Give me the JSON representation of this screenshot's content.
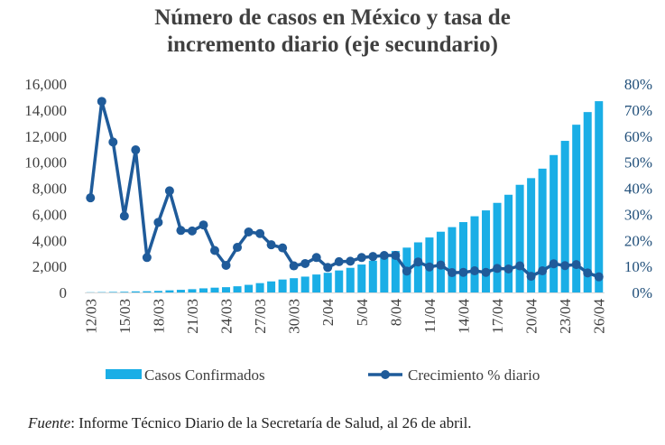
{
  "title_lines": [
    "Número de casos en México y tasa de",
    "incremento diario (eje secundario)"
  ],
  "chart_data": {
    "type": "bar",
    "title": "Número de casos en México y tasa de incremento diario (eje secundario)",
    "categories": [
      "12/03",
      "13/03",
      "14/03",
      "15/03",
      "16/03",
      "17/03",
      "18/03",
      "19/03",
      "20/03",
      "21/03",
      "22/03",
      "23/03",
      "24/03",
      "25/03",
      "26/03",
      "27/03",
      "28/03",
      "29/03",
      "30/03",
      "31/03",
      "1/04",
      "2/04",
      "3/04",
      "4/04",
      "5/04",
      "6/04",
      "7/04",
      "8/04",
      "9/04",
      "10/04",
      "11/04",
      "12/04",
      "13/04",
      "14/04",
      "15/04",
      "16/04",
      "17/04",
      "18/04",
      "19/04",
      "20/04",
      "21/04",
      "22/04",
      "23/04",
      "24/04",
      "25/04",
      "26/04"
    ],
    "tick_labels": [
      "12/03",
      "15/03",
      "18/03",
      "21/03",
      "24/03",
      "27/03",
      "30/03",
      "2/04",
      "5/04",
      "8/04",
      "11/04",
      "14/04",
      "17/04",
      "20/04",
      "23/04",
      "26/04"
    ],
    "series": [
      {
        "name": "Casos Confirmados",
        "type": "bar",
        "axis": "left",
        "color": "#1aaee6",
        "values": [
          16,
          26,
          41,
          53,
          82,
          93,
          118,
          164,
          203,
          251,
          316,
          367,
          405,
          475,
          585,
          717,
          848,
          993,
          1094,
          1215,
          1378,
          1510,
          1688,
          1890,
          2143,
          2439,
          2785,
          3181,
          3441,
          3844,
          4219,
          4661,
          5014,
          5399,
          5847,
          6297,
          6875,
          7497,
          8261,
          8772,
          9501,
          10544,
          11633,
          12872,
          13842,
          14677
        ]
      },
      {
        "name": "Crecimiento % diario",
        "type": "line",
        "axis": "right",
        "color": "#1f5b9a",
        "values": [
          36.3,
          73.3,
          57.7,
          29.3,
          54.7,
          13.4,
          26.9,
          39.0,
          23.8,
          23.6,
          25.9,
          16.1,
          10.4,
          17.3,
          23.2,
          22.6,
          18.3,
          17.1,
          10.2,
          11.1,
          13.4,
          9.6,
          11.8,
          12.0,
          13.4,
          13.8,
          14.2,
          14.2,
          8.2,
          11.7,
          9.8,
          10.5,
          7.6,
          7.7,
          8.3,
          7.7,
          9.2,
          9.0,
          10.2,
          6.2,
          8.3,
          11.0,
          10.3,
          10.7,
          7.5,
          6.0
        ]
      }
    ],
    "y_left": {
      "min": 0,
      "max": 16000,
      "step": 2000,
      "tick_labels": [
        "0",
        "2,000",
        "4,000",
        "6,000",
        "8,000",
        "10,000",
        "12,000",
        "14,000",
        "16,000"
      ]
    },
    "y_right": {
      "min": 0,
      "max": 80,
      "step": 10,
      "tick_labels": [
        "0%",
        "10%",
        "20%",
        "30%",
        "40%",
        "50%",
        "60%",
        "70%",
        "80%"
      ]
    },
    "grid": false,
    "legend_position": "bottom"
  },
  "legend": {
    "bar_label": "Casos Confirmados",
    "line_label": "Crecimiento % diario"
  },
  "footnote": {
    "source_label": "Fuente",
    "text": ": Informe Técnico Diario de la Secretaría de Salud, al 26 de abril."
  },
  "colors": {
    "bar": "#1aaee6",
    "line": "#1f5b9a",
    "right_axis_text": "#1f4e79",
    "text": "#404040"
  }
}
